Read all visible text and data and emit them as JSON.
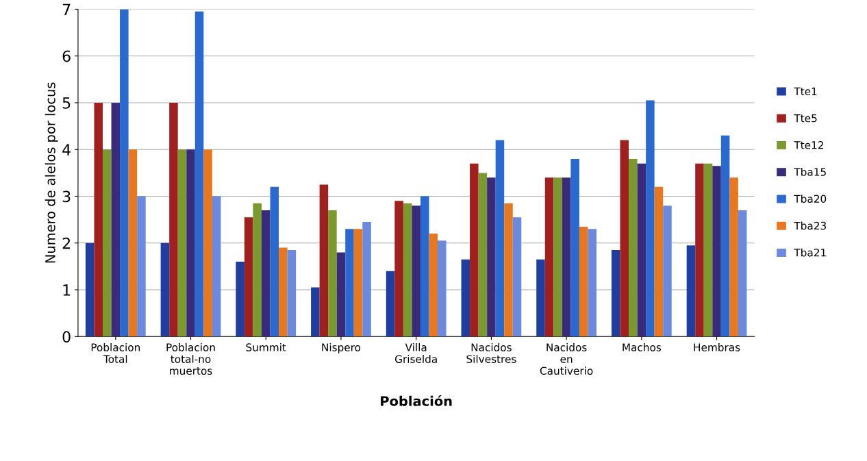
{
  "chart_data": {
    "type": "bar",
    "xlabel": "Población",
    "ylabel": "Numero de alelos por locus",
    "categories": [
      "Poblacion\nTotal",
      "Poblacion\ntotal-no\nmuertos",
      "Summit",
      "Nispero",
      "Villa\nGriselda",
      "Nacidos\nSilvestres",
      "Nacidos\nen\nCautiverio",
      "Machos",
      "Hembras"
    ],
    "series": [
      {
        "name": "Tte1",
        "color": "#1f3fa0",
        "values": [
          2,
          2,
          1.6,
          1.05,
          1.4,
          1.65,
          1.65,
          1.85,
          1.95
        ]
      },
      {
        "name": "Tte5",
        "color": "#a02020",
        "values": [
          5,
          5,
          2.55,
          3.25,
          2.9,
          3.7,
          3.4,
          4.2,
          3.7
        ]
      },
      {
        "name": "Tte12",
        "color": "#7a9a30",
        "values": [
          4,
          4,
          2.85,
          2.7,
          2.85,
          3.5,
          3.4,
          3.8,
          3.7
        ]
      },
      {
        "name": "Tba15",
        "color": "#3a2a7a",
        "values": [
          5,
          4,
          2.7,
          1.8,
          2.8,
          3.4,
          3.4,
          3.7,
          3.65
        ]
      },
      {
        "name": "Tba20",
        "color": "#2a6ad0",
        "values": [
          7,
          6.95,
          3.2,
          2.3,
          3.0,
          4.2,
          3.8,
          5.05,
          4.3
        ]
      },
      {
        "name": "Tba23",
        "color": "#e87820",
        "values": [
          4,
          4,
          1.9,
          2.3,
          2.2,
          2.85,
          2.35,
          3.2,
          3.4
        ]
      },
      {
        "name": "Tba21",
        "color": "#6a8ae0",
        "values": [
          3,
          3,
          1.85,
          2.45,
          2.05,
          2.55,
          2.3,
          2.8,
          2.7
        ]
      }
    ],
    "ylim": [
      0,
      7
    ],
    "yticks": [
      0,
      1,
      2,
      3,
      4,
      5,
      6,
      7
    ],
    "grid": "y",
    "legend": "right"
  }
}
